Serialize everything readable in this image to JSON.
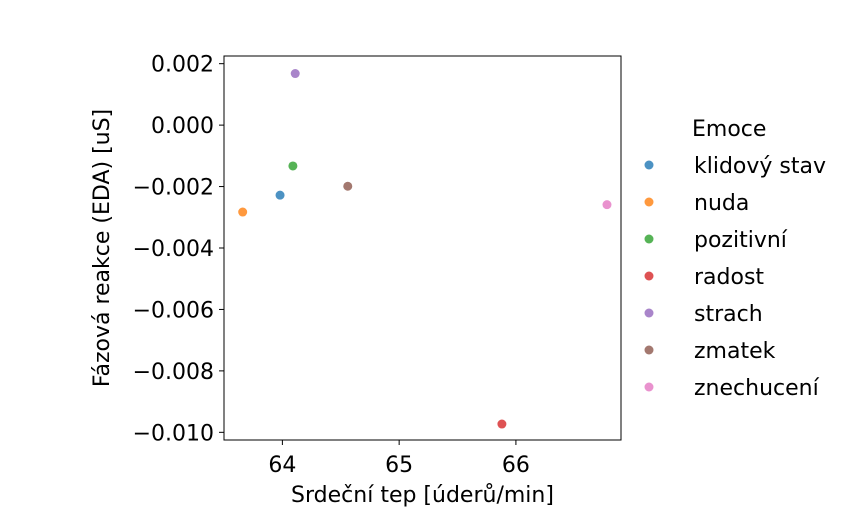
{
  "chart_data": {
    "type": "scatter",
    "xlabel": "Srdeční tep [úderů/min]",
    "ylabel": "Fázová reakce (EDA) [uS]",
    "xlim": [
      63.5,
      66.9
    ],
    "ylim": [
      -0.01025,
      0.00225
    ],
    "xticks": [
      64,
      65,
      66
    ],
    "xtick_labels": [
      "64",
      "65",
      "66"
    ],
    "yticks": [
      0.002,
      0.0,
      -0.002,
      -0.004,
      -0.006,
      -0.008,
      -0.01
    ],
    "ytick_labels": [
      "0.002",
      "0.000",
      "−0.002",
      "−0.004",
      "−0.006",
      "−0.008",
      "−0.010"
    ],
    "grid": false,
    "legend": {
      "title": "Emoce",
      "placement": "outside-right"
    },
    "series": [
      {
        "name": "klidový stav",
        "color": "#1f77b4",
        "x": [
          63.98
        ],
        "y": [
          -0.00228
        ]
      },
      {
        "name": "nuda",
        "color": "#ff7f0e",
        "x": [
          63.66
        ],
        "y": [
          -0.00283
        ]
      },
      {
        "name": "pozitivní",
        "color": "#2ca02c",
        "x": [
          64.09
        ],
        "y": [
          -0.00133
        ]
      },
      {
        "name": "radost",
        "color": "#d62728",
        "x": [
          65.88
        ],
        "y": [
          -0.00973
        ]
      },
      {
        "name": "strach",
        "color": "#9467bd",
        "x": [
          64.11
        ],
        "y": [
          0.00168
        ]
      },
      {
        "name": "zmatek",
        "color": "#8c564b",
        "x": [
          64.56
        ],
        "y": [
          -0.00199
        ]
      },
      {
        "name": "znechucení",
        "color": "#e377c2",
        "x": [
          66.78
        ],
        "y": [
          -0.00259
        ]
      }
    ]
  }
}
